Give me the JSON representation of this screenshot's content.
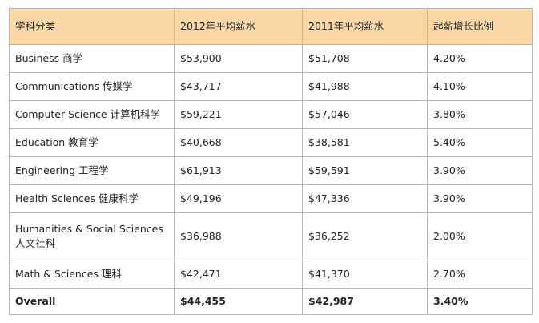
{
  "table": {
    "headers": [
      "学科分类",
      "2012年平均薪水",
      "2011年平均薪水",
      "起薪增长比例"
    ],
    "rows": [
      [
        "Business 商学",
        "$53,900",
        "$51,708",
        "4.20%"
      ],
      [
        "Communications 传媒学",
        "$43,717",
        "$41,988",
        "4.10%"
      ],
      [
        "Computer Science 计算机科学",
        "$59,221",
        "$57,046",
        "3.80%"
      ],
      [
        "Education 教育学",
        "$40,668",
        "$38,581",
        "5.40%"
      ],
      [
        "Engineering 工程学",
        "$61,913",
        "$59,591",
        "3.90%"
      ],
      [
        "Health Sciences 健康科学",
        "$49,196",
        "$47,336",
        "3.90%"
      ],
      [
        "Humanities & Social Sciences 人文社科",
        "$36,988",
        "$36,252",
        "2.00%"
      ],
      [
        "Math & Sciences 理科",
        "$42,471",
        "$41,370",
        "2.70%"
      ]
    ],
    "total": [
      "Overall",
      "$44,455",
      "$42,987",
      "3.40%"
    ]
  },
  "colors": {
    "header_bg": "#fcd8a7",
    "border": "#b7b7b7"
  }
}
